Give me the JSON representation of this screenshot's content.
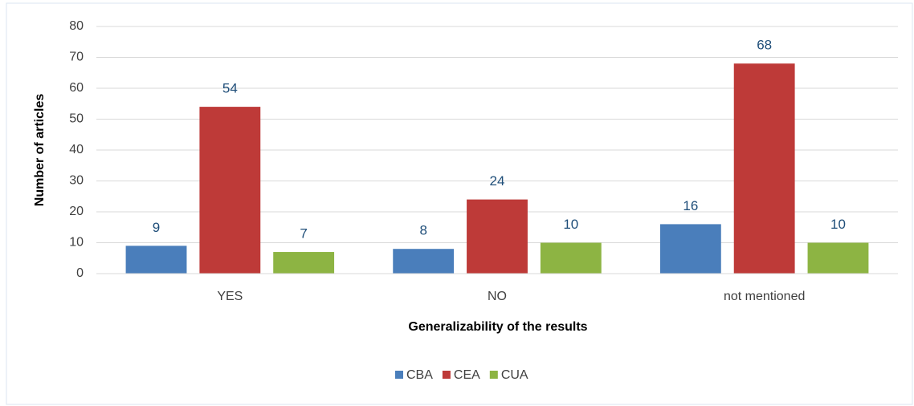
{
  "chart_data": {
    "type": "bar",
    "x_label": "Generalizability of the results",
    "y_label": "Number of articles",
    "categories": [
      "YES",
      "NO",
      "not mentioned"
    ],
    "series": [
      {
        "name": "CBA",
        "color": "#4a7ebb",
        "values": [
          9,
          8,
          16
        ]
      },
      {
        "name": "CEA",
        "color": "#be3a38",
        "values": [
          54,
          24,
          68
        ]
      },
      {
        "name": "CUA",
        "color": "#8db443",
        "values": [
          7,
          10,
          10
        ]
      }
    ],
    "ylim": [
      0,
      80
    ],
    "yticks": [
      0,
      10,
      20,
      30,
      40,
      50,
      60,
      70,
      80
    ],
    "grid": true,
    "legend": "bottom"
  }
}
